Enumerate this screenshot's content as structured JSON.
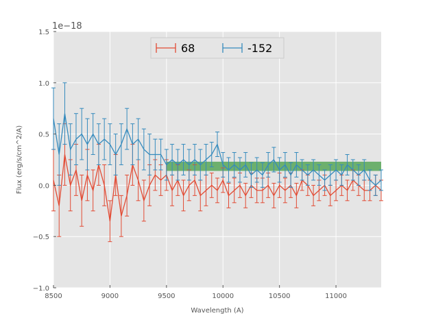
{
  "chart_data": {
    "type": "line",
    "title": "",
    "xlabel": "Wavelength (A)",
    "ylabel": "Flux (erg/s/cm^2/A)",
    "y_scale_label": "1e−18",
    "xlim": [
      8500,
      11400
    ],
    "ylim": [
      -1.0,
      1.5
    ],
    "x_ticks": [
      8500,
      9000,
      9500,
      10000,
      10500,
      11000
    ],
    "x_tick_labels": [
      "8500",
      "9000",
      "9500",
      "10000",
      "10500",
      "11000"
    ],
    "y_ticks": [
      -1.0,
      -0.5,
      0.0,
      0.5,
      1.0,
      1.5
    ],
    "y_tick_labels": [
      "−1.0",
      "−0.5",
      "0.0",
      "0.5",
      "1.0",
      "1.5"
    ],
    "grid": true,
    "legend_position": "top-center",
    "band": {
      "x": [
        9500,
        11400
      ],
      "y": [
        0.14,
        0.23
      ],
      "color": "#3a9a3a",
      "opacity": 0.7
    },
    "series": [
      {
        "name": "68",
        "color": "#e24a33",
        "x": [
          8500,
          8550,
          8600,
          8650,
          8700,
          8750,
          8800,
          8850,
          8900,
          8950,
          9000,
          9050,
          9100,
          9150,
          9200,
          9250,
          9300,
          9350,
          9400,
          9450,
          9500,
          9550,
          9600,
          9650,
          9700,
          9750,
          9800,
          9850,
          9900,
          9950,
          10000,
          10050,
          10100,
          10150,
          10200,
          10250,
          10300,
          10350,
          10400,
          10450,
          10500,
          10550,
          10600,
          10650,
          10700,
          10750,
          10800,
          10850,
          10900,
          10950,
          11000,
          11050,
          11100,
          11150,
          11200,
          11250,
          11300,
          11350,
          11400
        ],
        "y": [
          0.05,
          -0.2,
          0.3,
          0.0,
          0.15,
          -0.15,
          0.1,
          -0.05,
          0.2,
          0.0,
          -0.35,
          0.1,
          -0.3,
          -0.1,
          0.2,
          0.05,
          -0.15,
          0.0,
          0.1,
          0.05,
          0.1,
          -0.05,
          0.05,
          -0.1,
          0.0,
          0.05,
          -0.1,
          -0.05,
          0.0,
          -0.05,
          0.05,
          -0.1,
          -0.05,
          0.0,
          -0.1,
          0.0,
          -0.05,
          -0.05,
          0.0,
          -0.1,
          0.0,
          -0.05,
          0.0,
          -0.1,
          0.05,
          0.0,
          -0.1,
          -0.05,
          0.0,
          -0.1,
          -0.05,
          0.0,
          -0.05,
          0.05,
          0.0,
          -0.05,
          -0.05,
          0.0,
          -0.05
        ],
        "err": [
          0.3,
          0.3,
          0.3,
          0.25,
          0.25,
          0.25,
          0.25,
          0.2,
          0.2,
          0.2,
          0.2,
          0.2,
          0.2,
          0.2,
          0.2,
          0.2,
          0.2,
          0.2,
          0.15,
          0.15,
          0.15,
          0.15,
          0.15,
          0.15,
          0.15,
          0.15,
          0.15,
          0.15,
          0.12,
          0.12,
          0.12,
          0.12,
          0.12,
          0.12,
          0.12,
          0.12,
          0.12,
          0.12,
          0.12,
          0.12,
          0.12,
          0.12,
          0.12,
          0.12,
          0.1,
          0.1,
          0.1,
          0.1,
          0.1,
          0.1,
          0.1,
          0.1,
          0.1,
          0.1,
          0.1,
          0.1,
          0.1,
          0.1,
          0.1
        ]
      },
      {
        "name": "-152",
        "color": "#348abd",
        "x": [
          8500,
          8550,
          8600,
          8650,
          8700,
          8750,
          8800,
          8850,
          8900,
          8950,
          9000,
          9050,
          9100,
          9150,
          9200,
          9250,
          9300,
          9350,
          9400,
          9450,
          9500,
          9550,
          9600,
          9650,
          9700,
          9750,
          9800,
          9850,
          9900,
          9950,
          10000,
          10050,
          10100,
          10150,
          10200,
          10250,
          10300,
          10350,
          10400,
          10450,
          10500,
          10550,
          10600,
          10650,
          10700,
          10750,
          10800,
          10850,
          10900,
          10950,
          11000,
          11050,
          11100,
          11150,
          11200,
          11250,
          11300,
          11350,
          11400
        ],
        "y": [
          0.65,
          0.3,
          0.7,
          0.35,
          0.45,
          0.5,
          0.4,
          0.5,
          0.4,
          0.45,
          0.4,
          0.3,
          0.4,
          0.55,
          0.4,
          0.45,
          0.35,
          0.3,
          0.3,
          0.3,
          0.2,
          0.25,
          0.2,
          0.25,
          0.2,
          0.25,
          0.2,
          0.25,
          0.3,
          0.4,
          0.2,
          0.15,
          0.2,
          0.15,
          0.2,
          0.1,
          0.15,
          0.1,
          0.2,
          0.25,
          0.15,
          0.2,
          0.1,
          0.2,
          0.15,
          0.1,
          0.15,
          0.1,
          0.05,
          0.1,
          0.15,
          0.1,
          0.2,
          0.15,
          0.1,
          0.15,
          0.05,
          0.0,
          0.05
        ],
        "err": [
          0.3,
          0.3,
          0.3,
          0.25,
          0.25,
          0.25,
          0.25,
          0.2,
          0.2,
          0.2,
          0.2,
          0.2,
          0.2,
          0.2,
          0.2,
          0.2,
          0.2,
          0.2,
          0.15,
          0.15,
          0.15,
          0.15,
          0.15,
          0.15,
          0.15,
          0.15,
          0.15,
          0.15,
          0.12,
          0.12,
          0.12,
          0.12,
          0.12,
          0.12,
          0.12,
          0.12,
          0.12,
          0.12,
          0.12,
          0.12,
          0.12,
          0.12,
          0.12,
          0.12,
          0.1,
          0.1,
          0.1,
          0.1,
          0.1,
          0.1,
          0.1,
          0.1,
          0.1,
          0.1,
          0.1,
          0.1,
          0.1,
          0.1,
          0.1
        ]
      }
    ]
  }
}
